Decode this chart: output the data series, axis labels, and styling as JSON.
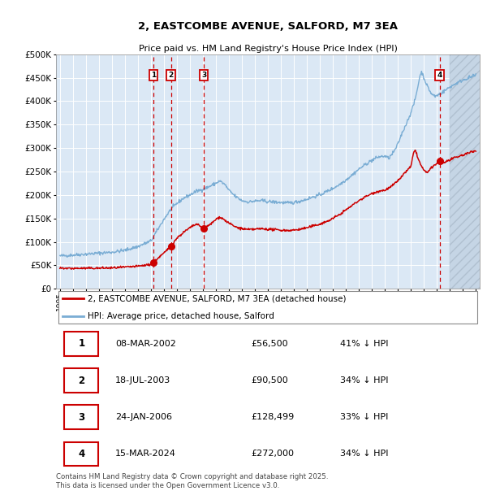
{
  "title": "2, EASTCOMBE AVENUE, SALFORD, M7 3EA",
  "subtitle": "Price paid vs. HM Land Registry's House Price Index (HPI)",
  "ylim": [
    0,
    500000
  ],
  "yticks": [
    0,
    50000,
    100000,
    150000,
    200000,
    250000,
    300000,
    350000,
    400000,
    450000,
    500000
  ],
  "ytick_labels": [
    "£0",
    "£50K",
    "£100K",
    "£150K",
    "£200K",
    "£250K",
    "£300K",
    "£350K",
    "£400K",
    "£450K",
    "£500K"
  ],
  "x_start_year": 1995,
  "x_end_year": 2027,
  "hpi_color": "#7aadd4",
  "price_color": "#cc0000",
  "vline_color": "#cc0000",
  "background_color": "#dbe8f5",
  "grid_color": "#ffffff",
  "sale_dates": [
    2002.19,
    2003.54,
    2006.07,
    2024.21
  ],
  "sale_prices": [
    56500,
    90500,
    128499,
    272000
  ],
  "sale_labels": [
    "1",
    "2",
    "3",
    "4"
  ],
  "legend_price_label": "2, EASTCOMBE AVENUE, SALFORD, M7 3EA (detached house)",
  "legend_hpi_label": "HPI: Average price, detached house, Salford",
  "table_rows": [
    [
      "1",
      "08-MAR-2002",
      "£56,500",
      "41% ↓ HPI"
    ],
    [
      "2",
      "18-JUL-2003",
      "£90,500",
      "34% ↓ HPI"
    ],
    [
      "3",
      "24-JAN-2006",
      "£128,499",
      "33% ↓ HPI"
    ],
    [
      "4",
      "15-MAR-2024",
      "£272,000",
      "34% ↓ HPI"
    ]
  ],
  "footer": "Contains HM Land Registry data © Crown copyright and database right 2025.\nThis data is licensed under the Open Government Licence v3.0.",
  "hpi_keypoints": [
    [
      1995.0,
      70000
    ],
    [
      1996.0,
      72000
    ],
    [
      1997.0,
      74000
    ],
    [
      1998.0,
      76000
    ],
    [
      1999.0,
      78000
    ],
    [
      2000.0,
      82000
    ],
    [
      2001.0,
      90000
    ],
    [
      2002.0,
      102000
    ],
    [
      2002.5,
      125000
    ],
    [
      2003.0,
      148000
    ],
    [
      2003.5,
      168000
    ],
    [
      2004.0,
      182000
    ],
    [
      2004.5,
      193000
    ],
    [
      2005.0,
      200000
    ],
    [
      2005.5,
      208000
    ],
    [
      2006.0,
      212000
    ],
    [
      2006.5,
      218000
    ],
    [
      2007.0,
      225000
    ],
    [
      2007.3,
      230000
    ],
    [
      2007.7,
      222000
    ],
    [
      2008.0,
      210000
    ],
    [
      2008.5,
      197000
    ],
    [
      2009.0,
      188000
    ],
    [
      2009.5,
      185000
    ],
    [
      2010.0,
      187000
    ],
    [
      2010.5,
      188000
    ],
    [
      2011.0,
      186000
    ],
    [
      2011.5,
      185000
    ],
    [
      2012.0,
      184000
    ],
    [
      2012.5,
      183000
    ],
    [
      2013.0,
      184000
    ],
    [
      2013.5,
      187000
    ],
    [
      2014.0,
      191000
    ],
    [
      2014.5,
      196000
    ],
    [
      2015.0,
      200000
    ],
    [
      2015.5,
      207000
    ],
    [
      2016.0,
      214000
    ],
    [
      2016.5,
      222000
    ],
    [
      2017.0,
      232000
    ],
    [
      2017.5,
      243000
    ],
    [
      2018.0,
      255000
    ],
    [
      2018.5,
      265000
    ],
    [
      2019.0,
      274000
    ],
    [
      2019.5,
      281000
    ],
    [
      2020.0,
      283000
    ],
    [
      2020.3,
      278000
    ],
    [
      2020.7,
      292000
    ],
    [
      2021.0,
      308000
    ],
    [
      2021.3,
      330000
    ],
    [
      2021.7,
      355000
    ],
    [
      2022.0,
      375000
    ],
    [
      2022.3,
      400000
    ],
    [
      2022.5,
      425000
    ],
    [
      2022.7,
      455000
    ],
    [
      2022.85,
      462000
    ],
    [
      2023.0,
      450000
    ],
    [
      2023.3,
      430000
    ],
    [
      2023.6,
      415000
    ],
    [
      2023.9,
      410000
    ],
    [
      2024.0,
      412000
    ],
    [
      2024.21,
      415000
    ],
    [
      2024.5,
      420000
    ],
    [
      2025.0,
      430000
    ],
    [
      2025.5,
      438000
    ],
    [
      2026.0,
      445000
    ],
    [
      2026.5,
      450000
    ],
    [
      2027.0,
      455000
    ]
  ],
  "price_keypoints": [
    [
      1995.0,
      44000
    ],
    [
      1996.0,
      43500
    ],
    [
      1997.0,
      43800
    ],
    [
      1998.0,
      44000
    ],
    [
      1999.0,
      44500
    ],
    [
      2000.0,
      46000
    ],
    [
      2001.0,
      48000
    ],
    [
      2002.0,
      52000
    ],
    [
      2002.19,
      56500
    ],
    [
      2002.5,
      64000
    ],
    [
      2003.0,
      76000
    ],
    [
      2003.54,
      90500
    ],
    [
      2004.0,
      108000
    ],
    [
      2004.5,
      120000
    ],
    [
      2005.0,
      130000
    ],
    [
      2005.5,
      138000
    ],
    [
      2006.07,
      128499
    ],
    [
      2006.3,
      132000
    ],
    [
      2006.7,
      140000
    ],
    [
      2007.0,
      148000
    ],
    [
      2007.3,
      153000
    ],
    [
      2007.5,
      150000
    ],
    [
      2008.0,
      140000
    ],
    [
      2008.5,
      132000
    ],
    [
      2009.0,
      128000
    ],
    [
      2009.5,
      126000
    ],
    [
      2010.0,
      127000
    ],
    [
      2010.5,
      128000
    ],
    [
      2011.0,
      127000
    ],
    [
      2011.5,
      126000
    ],
    [
      2012.0,
      125000
    ],
    [
      2012.5,
      124500
    ],
    [
      2013.0,
      125000
    ],
    [
      2013.5,
      127000
    ],
    [
      2014.0,
      130000
    ],
    [
      2014.5,
      134000
    ],
    [
      2015.0,
      138000
    ],
    [
      2015.5,
      143000
    ],
    [
      2016.0,
      150000
    ],
    [
      2016.5,
      158000
    ],
    [
      2017.0,
      168000
    ],
    [
      2017.5,
      178000
    ],
    [
      2018.0,
      188000
    ],
    [
      2018.5,
      196000
    ],
    [
      2019.0,
      203000
    ],
    [
      2019.5,
      208000
    ],
    [
      2020.0,
      210000
    ],
    [
      2020.5,
      218000
    ],
    [
      2021.0,
      230000
    ],
    [
      2021.5,
      246000
    ],
    [
      2022.0,
      260000
    ],
    [
      2022.2,
      288000
    ],
    [
      2022.35,
      298000
    ],
    [
      2022.5,
      282000
    ],
    [
      2022.7,
      268000
    ],
    [
      2023.0,
      252000
    ],
    [
      2023.3,
      248000
    ],
    [
      2023.6,
      258000
    ],
    [
      2023.9,
      265000
    ],
    [
      2024.0,
      268000
    ],
    [
      2024.21,
      272000
    ],
    [
      2024.5,
      268000
    ],
    [
      2025.0,
      275000
    ],
    [
      2025.5,
      280000
    ],
    [
      2026.0,
      285000
    ],
    [
      2026.5,
      290000
    ],
    [
      2027.0,
      295000
    ]
  ]
}
